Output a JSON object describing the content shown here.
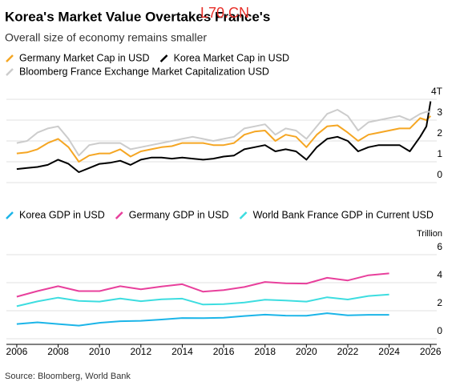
{
  "title": "Korea's Market Value Overtakes France's",
  "watermark": "L70.CN",
  "subtitle": "Overall size of economy remains smaller",
  "source": "Source: Bloomberg, World Bank",
  "chart_data": [
    {
      "type": "line",
      "x": [
        2006,
        2006.5,
        2007,
        2007.5,
        2008,
        2008.5,
        2009,
        2009.5,
        2010,
        2010.5,
        2011,
        2011.5,
        2012,
        2012.5,
        2013,
        2013.5,
        2014,
        2014.5,
        2015,
        2015.5,
        2016,
        2016.5,
        2017,
        2017.5,
        2018,
        2018.5,
        2019,
        2019.5,
        2020,
        2020.5,
        2021,
        2021.5,
        2022,
        2022.5,
        2023,
        2023.5,
        2024,
        2024.5,
        2025,
        2025.5,
        2025.8,
        2026
      ],
      "xlim": [
        2005.5,
        2026.3
      ],
      "ylim": [
        0,
        4
      ],
      "yticks": [
        0,
        1,
        2,
        3,
        {
          "value": 4,
          "label": "4T"
        }
      ],
      "grid": true,
      "series": [
        {
          "name": "Germany Market Cap in USD",
          "color": "#f5a623",
          "values": [
            1.4,
            1.45,
            1.6,
            1.9,
            2.1,
            1.7,
            1.0,
            1.3,
            1.4,
            1.4,
            1.6,
            1.25,
            1.5,
            1.6,
            1.7,
            1.75,
            1.9,
            1.9,
            1.9,
            1.8,
            1.8,
            1.9,
            2.3,
            2.45,
            2.5,
            2.0,
            2.3,
            2.2,
            1.7,
            2.3,
            2.7,
            2.75,
            2.4,
            2.0,
            2.3,
            2.4,
            2.5,
            2.6,
            2.6,
            3.1,
            3.0,
            3.2
          ]
        },
        {
          "name": "Korea Market Cap in USD",
          "color": "#000000",
          "values": [
            0.65,
            0.7,
            0.75,
            0.85,
            1.1,
            0.9,
            0.5,
            0.7,
            0.9,
            0.95,
            1.05,
            0.85,
            1.1,
            1.2,
            1.2,
            1.15,
            1.2,
            1.15,
            1.1,
            1.15,
            1.25,
            1.3,
            1.6,
            1.7,
            1.8,
            1.5,
            1.6,
            1.5,
            1.1,
            1.7,
            2.1,
            2.2,
            2.0,
            1.5,
            1.7,
            1.8,
            1.8,
            1.8,
            1.5,
            2.2,
            2.7,
            3.9
          ]
        },
        {
          "name": "Bloomberg France Exchange Market Capitalization USD",
          "color": "#cccccc",
          "values": [
            1.9,
            2.0,
            2.4,
            2.6,
            2.7,
            2.1,
            1.3,
            1.8,
            1.9,
            1.9,
            1.9,
            1.6,
            1.7,
            1.8,
            1.9,
            2.0,
            2.1,
            2.2,
            2.1,
            2.0,
            2.1,
            2.2,
            2.6,
            2.7,
            2.8,
            2.3,
            2.6,
            2.5,
            2.1,
            2.7,
            3.3,
            3.5,
            3.2,
            2.5,
            2.9,
            3.0,
            3.1,
            3.2,
            3.0,
            3.3,
            3.4,
            3.4
          ]
        }
      ]
    },
    {
      "type": "line",
      "x": [
        2006,
        2007,
        2008,
        2009,
        2010,
        2011,
        2012,
        2013,
        2014,
        2015,
        2016,
        2017,
        2018,
        2019,
        2020,
        2021,
        2022,
        2023,
        2024
      ],
      "xlim": [
        2005.5,
        2026.3
      ],
      "xticks": [
        2006,
        2008,
        2010,
        2012,
        2014,
        2016,
        2018,
        2020,
        2022,
        2024,
        2026
      ],
      "y_label": "Trillion",
      "ylim": [
        0,
        6
      ],
      "yticks": [
        0,
        2,
        4,
        6
      ],
      "grid": true,
      "series": [
        {
          "name": "Korea GDP in USD",
          "color": "#1cb5e8",
          "values": [
            1.05,
            1.17,
            1.05,
            0.94,
            1.14,
            1.25,
            1.28,
            1.37,
            1.48,
            1.47,
            1.5,
            1.62,
            1.72,
            1.65,
            1.64,
            1.82,
            1.67,
            1.71,
            1.71
          ]
        },
        {
          "name": "Germany GDP in USD",
          "color": "#e8409c",
          "values": [
            3.0,
            3.4,
            3.75,
            3.4,
            3.4,
            3.75,
            3.53,
            3.73,
            3.89,
            3.36,
            3.47,
            3.69,
            4.05,
            3.96,
            3.94,
            4.35,
            4.16,
            4.53,
            4.66
          ]
        },
        {
          "name": "World Bank France GDP in Current USD",
          "color": "#3ddde0",
          "values": [
            2.32,
            2.66,
            2.93,
            2.7,
            2.65,
            2.87,
            2.68,
            2.81,
            2.86,
            2.44,
            2.47,
            2.59,
            2.79,
            2.73,
            2.65,
            2.96,
            2.8,
            3.05,
            3.16
          ]
        }
      ]
    }
  ]
}
